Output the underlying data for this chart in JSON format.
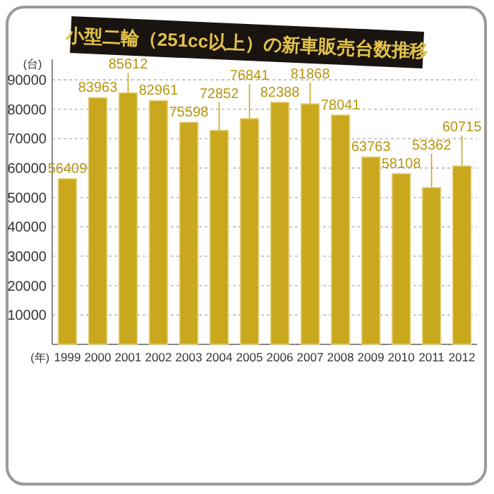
{
  "chart_data": {
    "type": "bar",
    "title": "小型二輪（251cc以上）の新車販売台数推移",
    "ylabel": "(台)",
    "xlabel": "(年)",
    "categories": [
      "1999",
      "2000",
      "2001",
      "2002",
      "2003",
      "2004",
      "2005",
      "2006",
      "2007",
      "2008",
      "2009",
      "2010",
      "2011",
      "2012"
    ],
    "values": [
      56409,
      83963,
      85612,
      82961,
      75598,
      72852,
      76841,
      82388,
      81868,
      78041,
      63763,
      58108,
      53362,
      60715
    ],
    "color": "#c9a81e",
    "ylim": [
      0,
      97000
    ],
    "yticks": [
      10000,
      20000,
      30000,
      40000,
      50000,
      60000,
      70000,
      80000,
      90000
    ],
    "grid": "y",
    "data_labels": true
  }
}
